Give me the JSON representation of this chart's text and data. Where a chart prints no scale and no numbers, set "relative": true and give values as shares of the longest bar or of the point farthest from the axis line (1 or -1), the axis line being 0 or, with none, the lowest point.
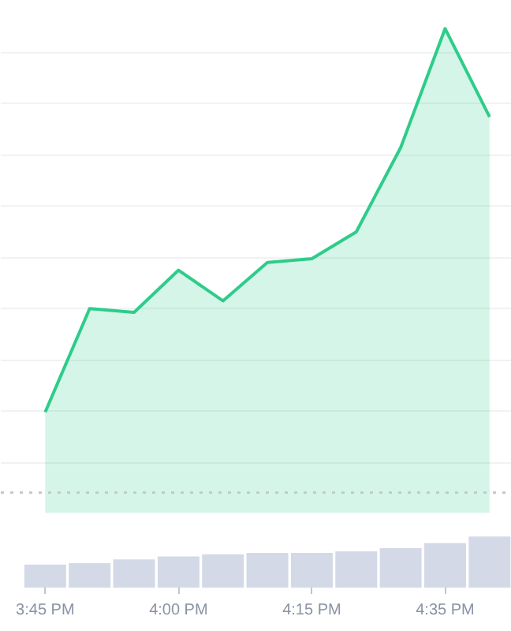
{
  "chart_data": [
    {
      "type": "area",
      "relative": true,
      "categories": [
        null,
        null,
        null,
        null,
        null,
        null,
        null,
        null,
        null,
        null,
        null
      ],
      "series": [
        {
          "color": "#2ecc8a",
          "values": [
            0,
            0.27,
            0.26,
            0.37,
            0.29,
            0.39,
            0.4,
            0.47,
            0.69,
            1,
            0.77
          ]
        }
      ],
      "ref_lines": [
        {
          "axis": "y",
          "value": -0.21,
          "label": null,
          "color": "#c4c8d0",
          "line_style": "dotted"
        }
      ],
      "grid": "y",
      "tick_labels": false
    },
    {
      "type": "bar",
      "relative": true,
      "categories": [
        "3:45 PM",
        null,
        null,
        "4:00 PM",
        null,
        null,
        "4:15 PM",
        null,
        null,
        "4:35 PM",
        null
      ],
      "series": [
        {
          "color": "#d3d9e6",
          "values": [
            0.45,
            0.48,
            0.55,
            0.61,
            0.65,
            0.68,
            0.68,
            0.71,
            0.77,
            0.87,
            1
          ]
        }
      ],
      "tick_labels": "x"
    }
  ]
}
